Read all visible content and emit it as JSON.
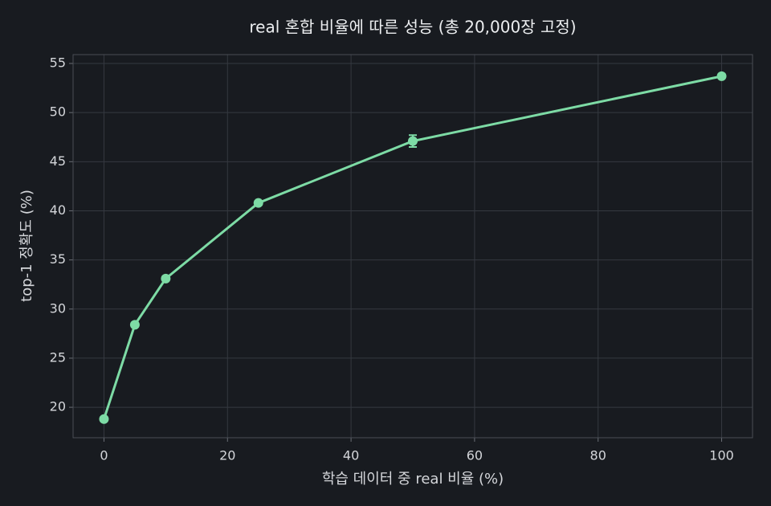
{
  "chart_data": {
    "type": "line",
    "title": "real 혼합 비율에 따른 성능 (총 20,000장 고정)",
    "x_label": "학습 데이터 중 real 비율 (%)",
    "y_label": "top-1 정확도 (%)",
    "x": [
      0,
      5,
      10,
      25,
      50,
      100
    ],
    "series": [
      {
        "name": "top-1",
        "color": "#7ddba5",
        "values": [
          18.8,
          28.4,
          33.1,
          40.8,
          47.1,
          53.7
        ],
        "errors": [
          0.2,
          0.2,
          0.2,
          0.2,
          0.6,
          0.2
        ]
      }
    ],
    "xlim": [
      -5,
      105
    ],
    "xticks": [
      0,
      20,
      40,
      60,
      80,
      100
    ],
    "ylim": [
      16.9,
      55.9
    ],
    "yticks": [
      20,
      25,
      30,
      35,
      40,
      45,
      50,
      55
    ],
    "grid": true
  }
}
